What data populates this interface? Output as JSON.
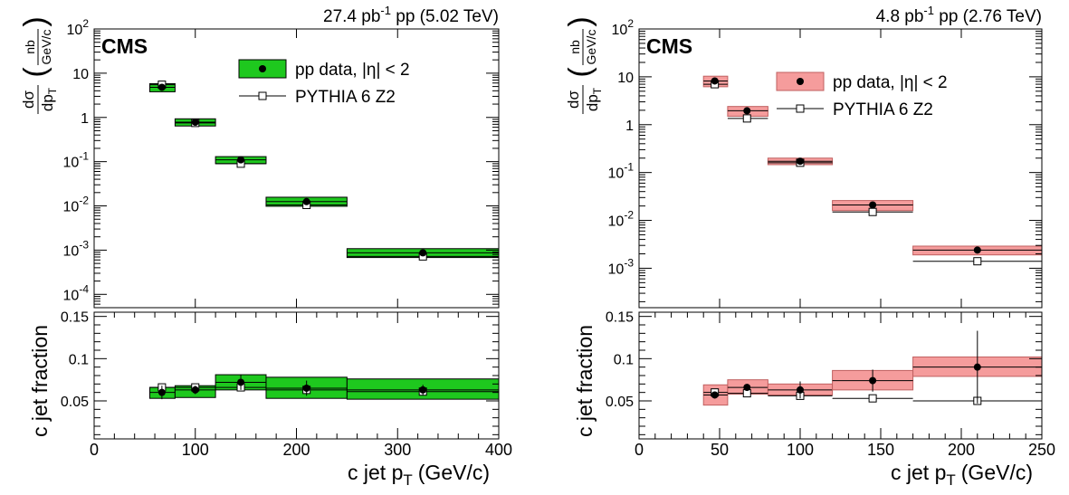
{
  "chart_data": [
    {
      "type": "scatter",
      "header": "27.4 pb⁻¹ pp (5.02 TeV)",
      "header_parts": {
        "lumi": "27.4 pb",
        "exp": "-1",
        "rest": " pp (5.02 TeV)"
      },
      "experiment": "CMS",
      "xlabel": "c jet p",
      "xlabel_sub": "T",
      "xlabel_tail": "(GeV/c)",
      "xlim": [
        0,
        400
      ],
      "xticks": [
        0,
        100,
        200,
        300,
        400
      ],
      "top": {
        "ylabel": "dσ/dp_T (nb/(GeV/c))",
        "ylabel_parts": {
          "num": "dσ",
          "den": "dp",
          "den_sub": "T",
          "unit_num": "nb",
          "unit_den": "GeV/c"
        },
        "yscale": "log",
        "ylim": [
          5e-05,
          100
        ],
        "yticks": [
          {
            "v": 0.0001,
            "base": "10",
            "exp": "-4"
          },
          {
            "v": 0.001,
            "base": "10",
            "exp": "-3"
          },
          {
            "v": 0.01,
            "base": "10",
            "exp": "-2"
          },
          {
            "v": 0.1,
            "base": "10",
            "exp": "-1"
          },
          {
            "v": 1,
            "base": "1",
            "exp": ""
          },
          {
            "v": 10,
            "base": "10",
            "exp": ""
          },
          {
            "v": 100,
            "base": "10",
            "exp": "2"
          }
        ],
        "data_label": "pp data, |η| < 2",
        "mc_label": "PYTHIA 6 Z2",
        "bins": [
          [
            55,
            80
          ],
          [
            80,
            120
          ],
          [
            120,
            170
          ],
          [
            170,
            250
          ],
          [
            250,
            400
          ]
        ],
        "data": [
          {
            "x": 67,
            "y": 4.8,
            "sys_lo": 3.8,
            "sys_hi": 5.8
          },
          {
            "x": 100,
            "y": 0.78,
            "sys_lo": 0.64,
            "sys_hi": 0.93
          },
          {
            "x": 145,
            "y": 0.11,
            "sys_lo": 0.09,
            "sys_hi": 0.13
          },
          {
            "x": 210,
            "y": 0.0125,
            "sys_lo": 0.0098,
            "sys_hi": 0.0157
          },
          {
            "x": 325,
            "y": 0.00087,
            "sys_lo": 0.00068,
            "sys_hi": 0.00108
          }
        ],
        "mc": [
          5.5,
          0.75,
          0.09,
          0.0105,
          0.00072
        ]
      },
      "bottom": {
        "ylabel": "c jet fraction",
        "ylim": [
          0.005,
          0.155
        ],
        "yticks": [
          0.05,
          0.1,
          0.15
        ],
        "ytick_labels": [
          "0.05",
          "0.1",
          "0.15"
        ],
        "data": [
          {
            "x": 67,
            "y": 0.06,
            "sys_lo": 0.053,
            "sys_hi": 0.066,
            "err": 0.008
          },
          {
            "x": 100,
            "y": 0.063,
            "sys_lo": 0.054,
            "sys_hi": 0.068,
            "err": 0.005
          },
          {
            "x": 145,
            "y": 0.072,
            "sys_lo": 0.063,
            "sys_hi": 0.081,
            "err": 0.009
          },
          {
            "x": 210,
            "y": 0.065,
            "sys_lo": 0.053,
            "sys_hi": 0.078,
            "err": 0.009
          },
          {
            "x": 325,
            "y": 0.063,
            "sys_lo": 0.052,
            "sys_hi": 0.076,
            "err": 0.006
          }
        ],
        "mc": [
          0.066,
          0.066,
          0.066,
          0.063,
          0.061
        ],
        "mc_err": [
          0.004,
          0.003,
          0.004,
          0.004,
          0.004
        ]
      },
      "colors": {
        "fill": "#1ec81e",
        "edge": "#000000"
      }
    },
    {
      "type": "scatter",
      "header": "4.8 pb⁻¹ pp (2.76 TeV)",
      "header_parts": {
        "lumi": "4.8 pb",
        "exp": "-1",
        "rest": " pp (2.76 TeV)"
      },
      "experiment": "CMS",
      "xlabel": "c jet p",
      "xlabel_sub": "T",
      "xlabel_tail": "(GeV/c)",
      "xlim": [
        0,
        250
      ],
      "xticks": [
        0,
        50,
        100,
        150,
        200,
        250
      ],
      "top": {
        "ylabel": "dσ/dp_T (nb/(GeV/c))",
        "ylabel_parts": {
          "num": "dσ",
          "den": "dp",
          "den_sub": "T",
          "unit_num": "nb",
          "unit_den": "GeV/c"
        },
        "yscale": "log",
        "ylim": [
          0.00015,
          100
        ],
        "yticks": [
          {
            "v": 0.001,
            "base": "10",
            "exp": "-3"
          },
          {
            "v": 0.01,
            "base": "10",
            "exp": "-2"
          },
          {
            "v": 0.1,
            "base": "10",
            "exp": "-1"
          },
          {
            "v": 1,
            "base": "1",
            "exp": ""
          },
          {
            "v": 10,
            "base": "10",
            "exp": ""
          },
          {
            "v": 100,
            "base": "10",
            "exp": "2"
          }
        ],
        "data_label": "pp data, |η| < 2",
        "mc_label": "PYTHIA 6 Z2",
        "bins": [
          [
            40,
            55
          ],
          [
            55,
            80
          ],
          [
            80,
            120
          ],
          [
            120,
            170
          ],
          [
            170,
            250
          ]
        ],
        "data": [
          {
            "x": 47,
            "y": 8.2,
            "sys_lo": 6.2,
            "sys_hi": 10.3
          },
          {
            "x": 67,
            "y": 1.95,
            "sys_lo": 1.5,
            "sys_hi": 2.4
          },
          {
            "x": 100,
            "y": 0.172,
            "sys_lo": 0.146,
            "sys_hi": 0.2
          },
          {
            "x": 145,
            "y": 0.021,
            "sys_lo": 0.016,
            "sys_hi": 0.026
          },
          {
            "x": 210,
            "y": 0.0024,
            "sys_lo": 0.0019,
            "sys_hi": 0.0029
          }
        ],
        "mc": [
          7.0,
          1.35,
          0.16,
          0.015,
          0.0014
        ]
      },
      "bottom": {
        "ylabel": "c jet fraction",
        "ylim": [
          0.005,
          0.155
        ],
        "yticks": [
          0.05,
          0.1,
          0.15
        ],
        "ytick_labels": [
          "0.05",
          "0.1",
          "0.15"
        ],
        "data": [
          {
            "x": 47,
            "y": 0.057,
            "sys_lo": 0.045,
            "sys_hi": 0.069,
            "err": 0.004
          },
          {
            "x": 67,
            "y": 0.066,
            "sys_lo": 0.058,
            "sys_hi": 0.075,
            "err": 0.004
          },
          {
            "x": 100,
            "y": 0.063,
            "sys_lo": 0.057,
            "sys_hi": 0.07,
            "err": 0.01
          },
          {
            "x": 145,
            "y": 0.074,
            "sys_lo": 0.063,
            "sys_hi": 0.086,
            "err": 0.013
          },
          {
            "x": 210,
            "y": 0.09,
            "sys_lo": 0.079,
            "sys_hi": 0.102,
            "err": 0.043
          }
        ],
        "mc": [
          0.06,
          0.059,
          0.056,
          0.053,
          0.05
        ],
        "mc_err": [
          0.004,
          0.003,
          0.003,
          0.003,
          0.003
        ]
      },
      "colors": {
        "fill": "#f59c9c",
        "edge": "#c06060"
      }
    }
  ]
}
